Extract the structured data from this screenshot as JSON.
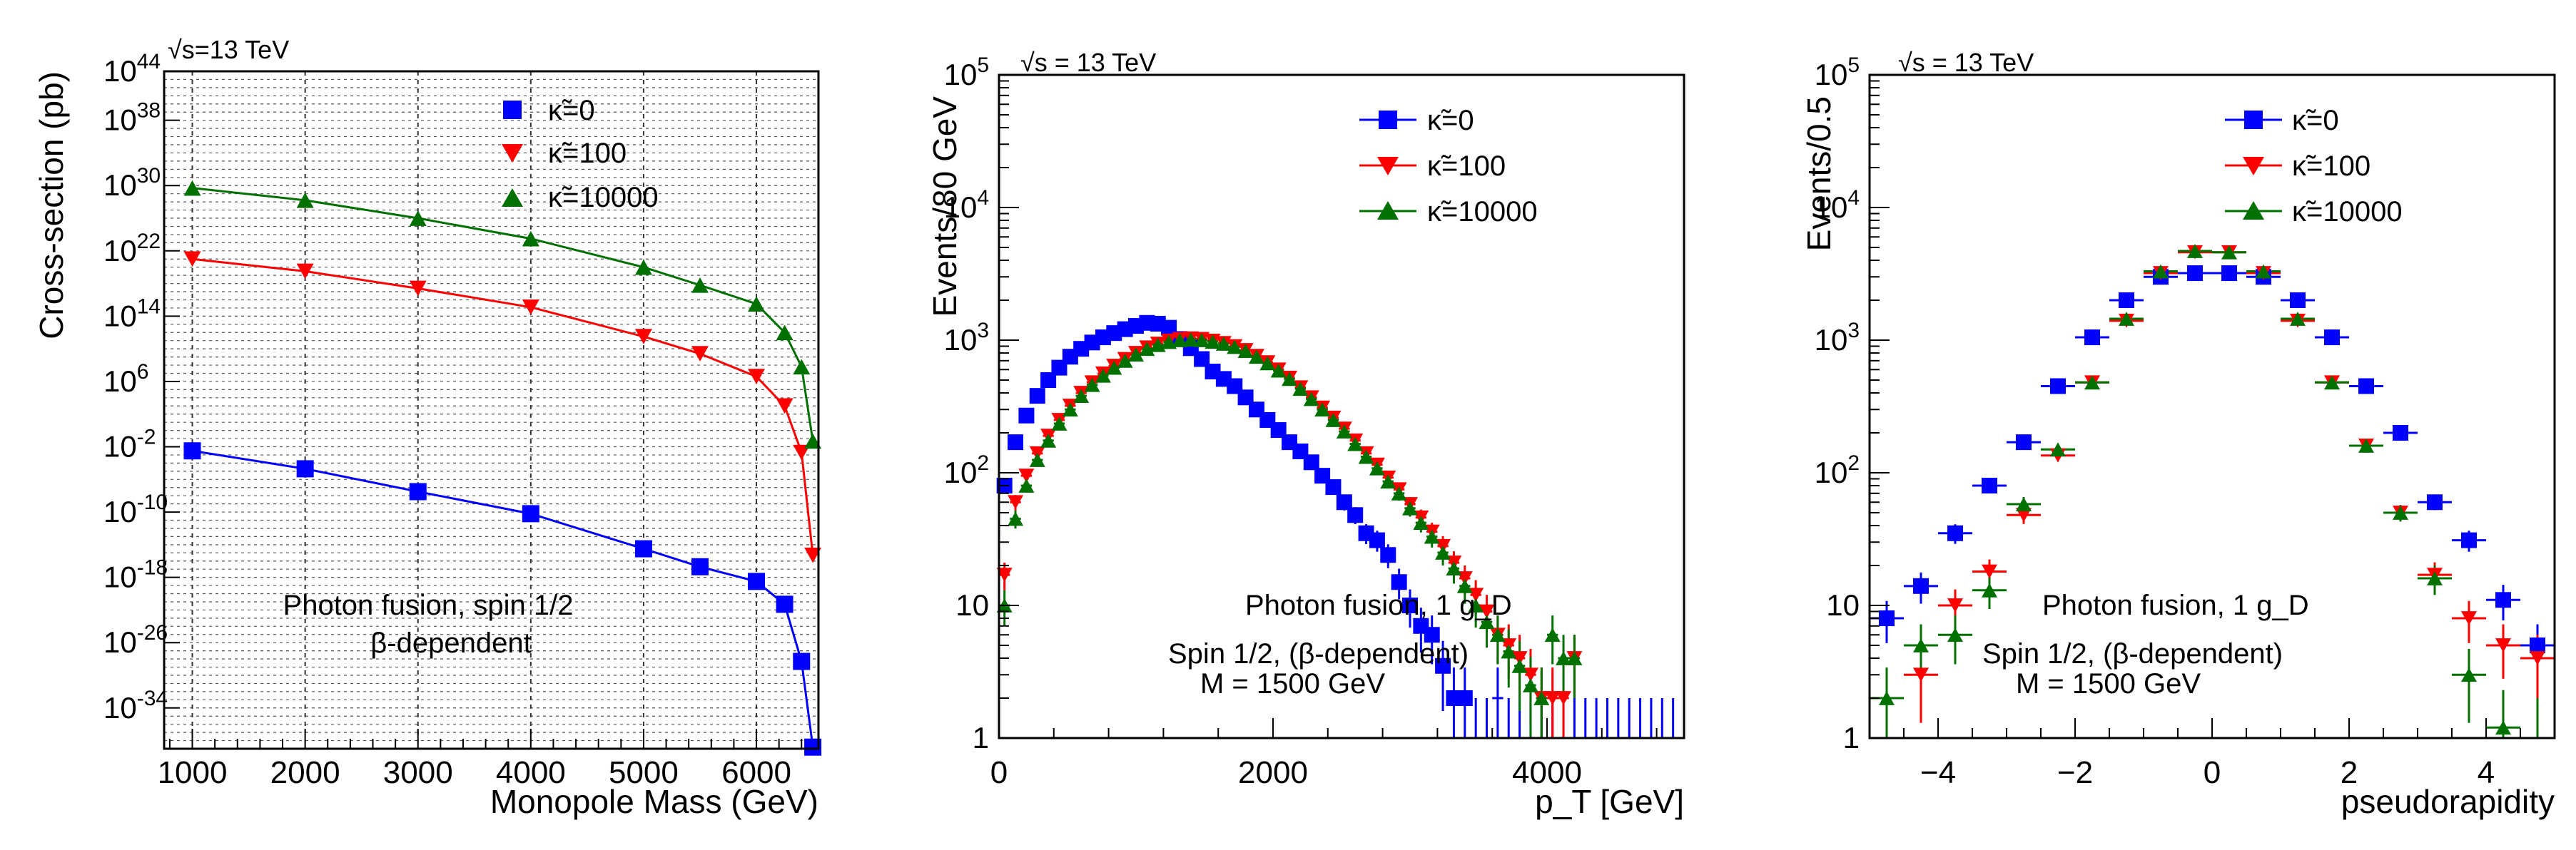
{
  "chart_data": [
    {
      "type": "line",
      "title": "√s=13 TeV",
      "xlabel": "Monopole Mass (GeV)",
      "ylabel": "Cross-section (pb)",
      "yscale": "log10",
      "xlim": [
        750,
        6550
      ],
      "ylim_exp": [
        -39,
        44
      ],
      "grid": true,
      "xticks": [
        1000,
        2000,
        3000,
        4000,
        5000,
        6000
      ],
      "xtick_labels": [
        "1000",
        "2000",
        "3000",
        "4000",
        "5000",
        "6000"
      ],
      "ytick_exps": [
        -34,
        -26,
        -18,
        -10,
        -2,
        6,
        14,
        22,
        30,
        38,
        44
      ],
      "ytick_labels": [
        {
          "base": "10",
          "exp": "-34"
        },
        {
          "base": "10",
          "exp": "-26"
        },
        {
          "base": "10",
          "exp": "-18"
        },
        {
          "base": "10",
          "exp": "-10"
        },
        {
          "base": "10",
          "exp": "-2"
        },
        {
          "base": "10",
          "exp": "6"
        },
        {
          "base": "10",
          "exp": "14"
        },
        {
          "base": "10",
          "exp": "22"
        },
        {
          "base": "10",
          "exp": "30"
        },
        {
          "base": "10",
          "exp": "38"
        },
        {
          "base": "10",
          "exp": "44"
        }
      ],
      "legend_position": "top-center",
      "annotations": [
        "Photon fusion, spin 1/2",
        "β-dependent"
      ],
      "series": [
        {
          "name": "κ̃=0",
          "color": "#0000ff",
          "marker": "square",
          "x": [
            1000,
            2000,
            3000,
            4000,
            5000,
            5500,
            6000,
            6250,
            6400,
            6500
          ],
          "log10_y": [
            -2.5,
            -4.7,
            -7.5,
            -10.2,
            -14.5,
            -16.7,
            -18.5,
            -21.3,
            -28.3,
            -38.8
          ]
        },
        {
          "name": "κ̃=100",
          "color": "#ff0000",
          "marker": "triangle-down",
          "x": [
            1000,
            2000,
            3000,
            4000,
            5000,
            5500,
            6000,
            6250,
            6400,
            6500
          ],
          "log10_y": [
            21.0,
            19.5,
            17.4,
            15.1,
            11.5,
            9.4,
            6.6,
            3.0,
            -2.7,
            -15.3
          ]
        },
        {
          "name": "κ̃=10000",
          "color": "#007000",
          "marker": "triangle-up",
          "x": [
            1000,
            2000,
            3000,
            4000,
            5000,
            5500,
            6000,
            6250,
            6400,
            6500
          ],
          "log10_y": [
            29.7,
            28.2,
            26.0,
            23.5,
            20.0,
            17.8,
            15.5,
            12.0,
            7.8,
            -1.3
          ]
        }
      ]
    },
    {
      "type": "scatter",
      "title": "√s = 13 TeV",
      "xlabel": "p_T [GeV]",
      "ylabel": "Events/80 GeV",
      "yscale": "log10",
      "xlim": [
        0,
        5000
      ],
      "ylim": [
        1,
        100000
      ],
      "grid": false,
      "xticks": [
        0,
        2000,
        4000
      ],
      "xtick_labels": [
        "0",
        "2000",
        "4000"
      ],
      "ytick_values": [
        1,
        10,
        100,
        1000,
        10000,
        100000
      ],
      "ytick_labels": [
        {
          "base": "1",
          "exp": ""
        },
        {
          "base": "10",
          "exp": ""
        },
        {
          "base": "10",
          "exp": "2"
        },
        {
          "base": "10",
          "exp": "3"
        },
        {
          "base": "10",
          "exp": "4"
        },
        {
          "base": "10",
          "exp": "5"
        }
      ],
      "legend_position": "top-center",
      "annotations": [
        "Photon fusion, 1 g_D",
        "Spin 1/2, (β-dependent)",
        "M = 1500 GeV"
      ],
      "series": [
        {
          "name": "κ̃=0",
          "color": "#0000ff",
          "marker": "square",
          "x": [
            40,
            120,
            200,
            280,
            360,
            440,
            520,
            600,
            680,
            760,
            840,
            920,
            1000,
            1080,
            1160,
            1240,
            1320,
            1400,
            1480,
            1560,
            1640,
            1720,
            1800,
            1880,
            1960,
            2040,
            2120,
            2200,
            2280,
            2360,
            2440,
            2520,
            2600,
            2680,
            2760,
            2840,
            2920,
            3000,
            3080,
            3160,
            3240,
            3320,
            3400,
            3480,
            3560,
            3640,
            3720,
            3800,
            3880,
            3960,
            4040,
            4120,
            4200,
            4280,
            4360,
            4440,
            4520,
            4600,
            4680,
            4760,
            4840,
            4920
          ],
          "y": [
            80,
            170,
            270,
            380,
            500,
            620,
            750,
            860,
            960,
            1050,
            1130,
            1210,
            1280,
            1350,
            1330,
            1240,
            1020,
            870,
            720,
            580,
            510,
            450,
            370,
            300,
            250,
            210,
            170,
            145,
            120,
            95,
            78,
            60,
            48,
            35,
            31,
            24,
            15,
            10,
            7,
            6,
            3.5,
            2,
            2,
            1,
            1,
            2,
            1,
            1,
            1,
            1,
            1,
            1,
            1,
            1,
            1,
            1,
            1,
            1,
            1,
            1,
            1,
            1
          ],
          "yerr": [
            9,
            13,
            16,
            19,
            22,
            25,
            27,
            29,
            31,
            32,
            34,
            35,
            36,
            37,
            36,
            35,
            32,
            29,
            27,
            24,
            23,
            21,
            19,
            17,
            16,
            14,
            13,
            12,
            11,
            10,
            9,
            8,
            7,
            6,
            5.6,
            4.9,
            3.9,
            3.2,
            2.6,
            2.4,
            1.9,
            1.4,
            1.4,
            1,
            1,
            1.4,
            1,
            1,
            1,
            1,
            1,
            1,
            1,
            1,
            1,
            1,
            1,
            1,
            1,
            1,
            1,
            1
          ],
          "n": 44
        },
        {
          "name": "κ̃=100",
          "color": "#ff0000",
          "marker": "triangle-down",
          "x": [
            40,
            120,
            200,
            280,
            360,
            440,
            520,
            600,
            680,
            760,
            840,
            920,
            1000,
            1080,
            1160,
            1240,
            1320,
            1400,
            1480,
            1560,
            1640,
            1720,
            1800,
            1880,
            1960,
            2040,
            2120,
            2200,
            2280,
            2360,
            2440,
            2520,
            2600,
            2680,
            2760,
            2840,
            2920,
            3000,
            3080,
            3160,
            3240,
            3320,
            3400,
            3480,
            3560,
            3640,
            3720,
            3800,
            3880,
            3960,
            4040,
            4120,
            4200
          ],
          "y": [
            17,
            60,
            95,
            140,
            190,
            250,
            320,
            400,
            480,
            560,
            640,
            720,
            800,
            880,
            940,
            990,
            1020,
            1030,
            1020,
            990,
            950,
            900,
            840,
            760,
            680,
            600,
            520,
            440,
            370,
            310,
            260,
            215,
            175,
            140,
            115,
            92,
            75,
            58,
            46,
            36,
            28,
            21,
            16,
            12,
            9,
            6,
            5,
            4,
            3,
            2,
            2,
            2,
            4
          ],
          "yerr": [
            4,
            8,
            10,
            12,
            14,
            16,
            18,
            20,
            22,
            24,
            25,
            27,
            28,
            30,
            31,
            31,
            32,
            32,
            32,
            31,
            31,
            30,
            29,
            28,
            26,
            24,
            23,
            21,
            19,
            18,
            16,
            15,
            13,
            12,
            11,
            9.6,
            8.7,
            7.6,
            6.8,
            6,
            5.3,
            4.6,
            4,
            3.5,
            3,
            2.4,
            2.2,
            2,
            1.7,
            1.4,
            1.4,
            1.4,
            2
          ],
          "n": 53
        },
        {
          "name": "κ̃=10000",
          "color": "#007000",
          "marker": "triangle-up",
          "x": [
            40,
            120,
            200,
            280,
            360,
            440,
            520,
            600,
            680,
            760,
            840,
            920,
            1000,
            1080,
            1160,
            1240,
            1320,
            1400,
            1480,
            1560,
            1640,
            1720,
            1800,
            1880,
            1960,
            2040,
            2120,
            2200,
            2280,
            2360,
            2440,
            2520,
            2600,
            2680,
            2760,
            2840,
            2920,
            3000,
            3080,
            3160,
            3240,
            3320,
            3400,
            3480,
            3560,
            3640,
            3720,
            3800,
            3880,
            3960,
            4040,
            4120,
            4200
          ],
          "y": [
            10,
            45,
            80,
            125,
            175,
            235,
            300,
            380,
            460,
            540,
            620,
            700,
            780,
            860,
            920,
            970,
            1000,
            1010,
            1000,
            975,
            940,
            890,
            830,
            750,
            670,
            590,
            510,
            430,
            360,
            300,
            250,
            205,
            165,
            132,
            108,
            86,
            70,
            54,
            42,
            33,
            25,
            19,
            14,
            10,
            7.5,
            6,
            4.5,
            3.5,
            2.5,
            2,
            6,
            4,
            4
          ],
          "yerr": [
            3,
            7,
            9,
            11,
            13,
            15,
            17,
            19,
            21,
            23,
            25,
            26,
            28,
            29,
            30,
            31,
            32,
            32,
            32,
            31,
            31,
            30,
            29,
            27,
            26,
            24,
            23,
            21,
            19,
            17,
            16,
            14,
            13,
            11,
            10,
            9.3,
            8.4,
            7.3,
            6.5,
            5.7,
            5,
            4.4,
            3.7,
            3.2,
            2.7,
            2.4,
            2.1,
            1.9,
            1.6,
            1.4,
            2.4,
            2,
            2
          ],
          "n": 53
        }
      ]
    },
    {
      "type": "scatter",
      "title": "√s = 13 TeV",
      "xlabel": "pseudorapidity",
      "ylabel": "Events/0.5",
      "yscale": "log10",
      "xlim": [
        -5,
        5
      ],
      "ylim": [
        1,
        100000
      ],
      "grid": false,
      "xticks": [
        -4,
        -2,
        0,
        2,
        4
      ],
      "xtick_labels": [
        "−4",
        "−2",
        "0",
        "2",
        "4"
      ],
      "ytick_values": [
        1,
        10,
        100,
        1000,
        10000,
        100000
      ],
      "ytick_labels": [
        {
          "base": "1",
          "exp": ""
        },
        {
          "base": "10",
          "exp": ""
        },
        {
          "base": "10",
          "exp": "2"
        },
        {
          "base": "10",
          "exp": "3"
        },
        {
          "base": "10",
          "exp": "4"
        },
        {
          "base": "10",
          "exp": "5"
        }
      ],
      "legend_position": "top-center",
      "annotations": [
        "Photon fusion, 1 g_D",
        "Spin 1/2, (β-dependent)",
        "M = 1500 GeV"
      ],
      "series": [
        {
          "name": "κ̃=0",
          "color": "#0000ff",
          "marker": "square",
          "x": [
            -4.75,
            -4.25,
            -3.75,
            -3.25,
            -2.75,
            -2.25,
            -1.75,
            -1.25,
            -0.75,
            -0.25,
            0.25,
            0.75,
            1.25,
            1.75,
            2.25,
            2.75,
            3.25,
            3.75,
            4.25,
            4.75
          ],
          "y": [
            8,
            14,
            35,
            80,
            170,
            450,
            1050,
            2000,
            3000,
            3200,
            3200,
            3000,
            2000,
            1050,
            450,
            200,
            60,
            31,
            11,
            5
          ],
          "yerr": [
            2.8,
            3.7,
            5.9,
            9,
            13,
            21,
            32,
            45,
            55,
            57,
            57,
            55,
            45,
            32,
            21,
            14,
            7.7,
            5.6,
            3.3,
            2.2
          ]
        },
        {
          "name": "κ̃=100",
          "color": "#ff0000",
          "marker": "triangle-down",
          "x": [
            -4.25,
            -3.75,
            -3.25,
            -2.75,
            -2.25,
            -1.75,
            -1.25,
            -0.75,
            -0.25,
            0.25,
            0.75,
            1.25,
            1.75,
            2.25,
            2.75,
            3.25,
            3.75,
            4.25,
            4.75
          ],
          "y": [
            3,
            10,
            18,
            48,
            135,
            480,
            1400,
            3200,
            4600,
            4600,
            3200,
            1400,
            480,
            160,
            50,
            17,
            8,
            5,
            4
          ],
          "yerr": [
            1.7,
            3.2,
            4.2,
            6.9,
            12,
            22,
            37,
            57,
            68,
            68,
            57,
            37,
            22,
            13,
            7.1,
            4.1,
            2.8,
            2.2,
            2
          ]
        },
        {
          "name": "κ̃=10000",
          "color": "#007000",
          "marker": "triangle-up",
          "x": [
            -4.75,
            -4.25,
            -3.75,
            -3.25,
            -2.75,
            -2.25,
            -1.75,
            -1.25,
            -0.75,
            -0.25,
            0.25,
            0.75,
            1.25,
            1.75,
            2.25,
            2.75,
            3.25,
            3.75,
            4.25,
            4.75
          ],
          "y": [
            2,
            5,
            6,
            13,
            58,
            150,
            480,
            1450,
            3300,
            4700,
            4600,
            3300,
            1450,
            480,
            160,
            50,
            16,
            3,
            1.2,
            1
          ],
          "yerr": [
            1.4,
            2.2,
            2.4,
            3.6,
            7.6,
            12,
            22,
            38,
            57,
            69,
            68,
            57,
            38,
            22,
            13,
            7.1,
            4,
            1.7,
            1.1,
            1
          ]
        }
      ]
    }
  ]
}
